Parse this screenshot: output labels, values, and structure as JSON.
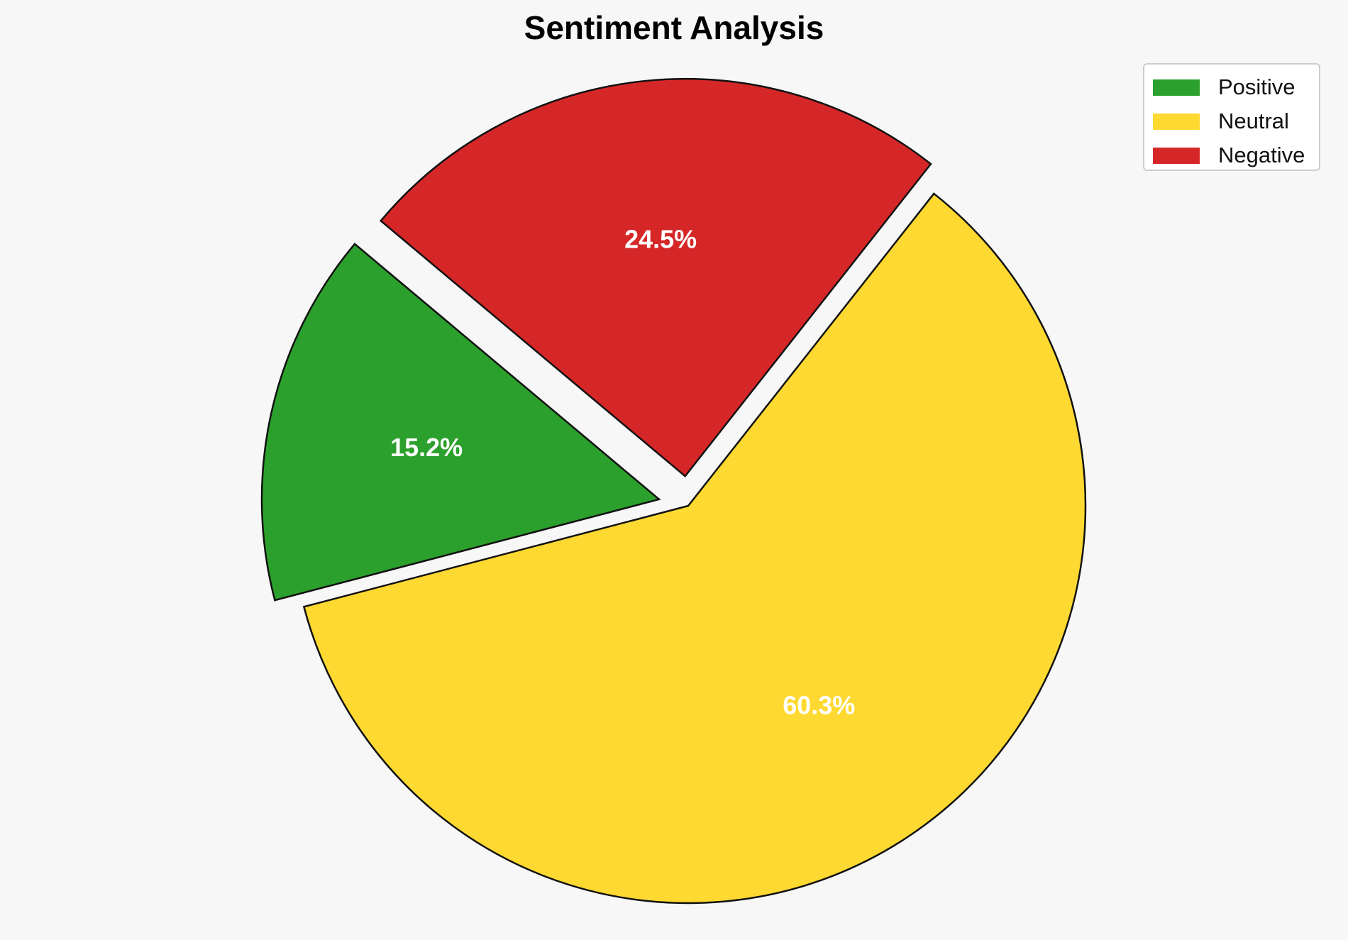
{
  "chart_data": {
    "type": "pie",
    "title": "Sentiment Analysis",
    "slices": [
      {
        "name": "Positive",
        "value": 15.2,
        "label": "15.2%",
        "color": "#2ca02c",
        "exploded": true
      },
      {
        "name": "Neutral",
        "value": 60.3,
        "label": "60.3%",
        "color": "#fdd931",
        "exploded": false
      },
      {
        "name": "Negative",
        "value": 24.5,
        "label": "24.5%",
        "color": "#d62728",
        "exploded": true
      }
    ],
    "legend_position": "top-right",
    "label_color": "#ffffff",
    "edge_color": "#111111"
  }
}
